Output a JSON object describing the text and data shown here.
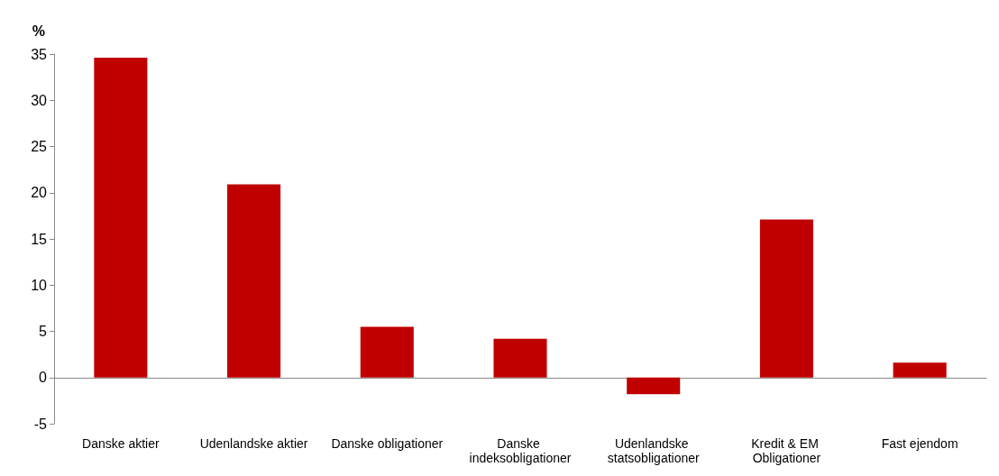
{
  "chart_data": {
    "type": "bar",
    "ylabel": "%",
    "categories": [
      "Danske aktier",
      "Udenlandske aktier",
      "Danske obligationer",
      "Danske indeksobligationer",
      "Udenlandske statsobligationer",
      "Kredit & EM Obligationer",
      "Fast ejendom"
    ],
    "values": [
      34.6,
      20.9,
      5.5,
      4.2,
      -1.8,
      17.1,
      1.6
    ],
    "color": "#c00000",
    "ylim": [
      -5,
      35
    ],
    "yticks": [
      -5,
      0,
      5,
      10,
      15,
      20,
      25,
      30,
      35
    ]
  }
}
